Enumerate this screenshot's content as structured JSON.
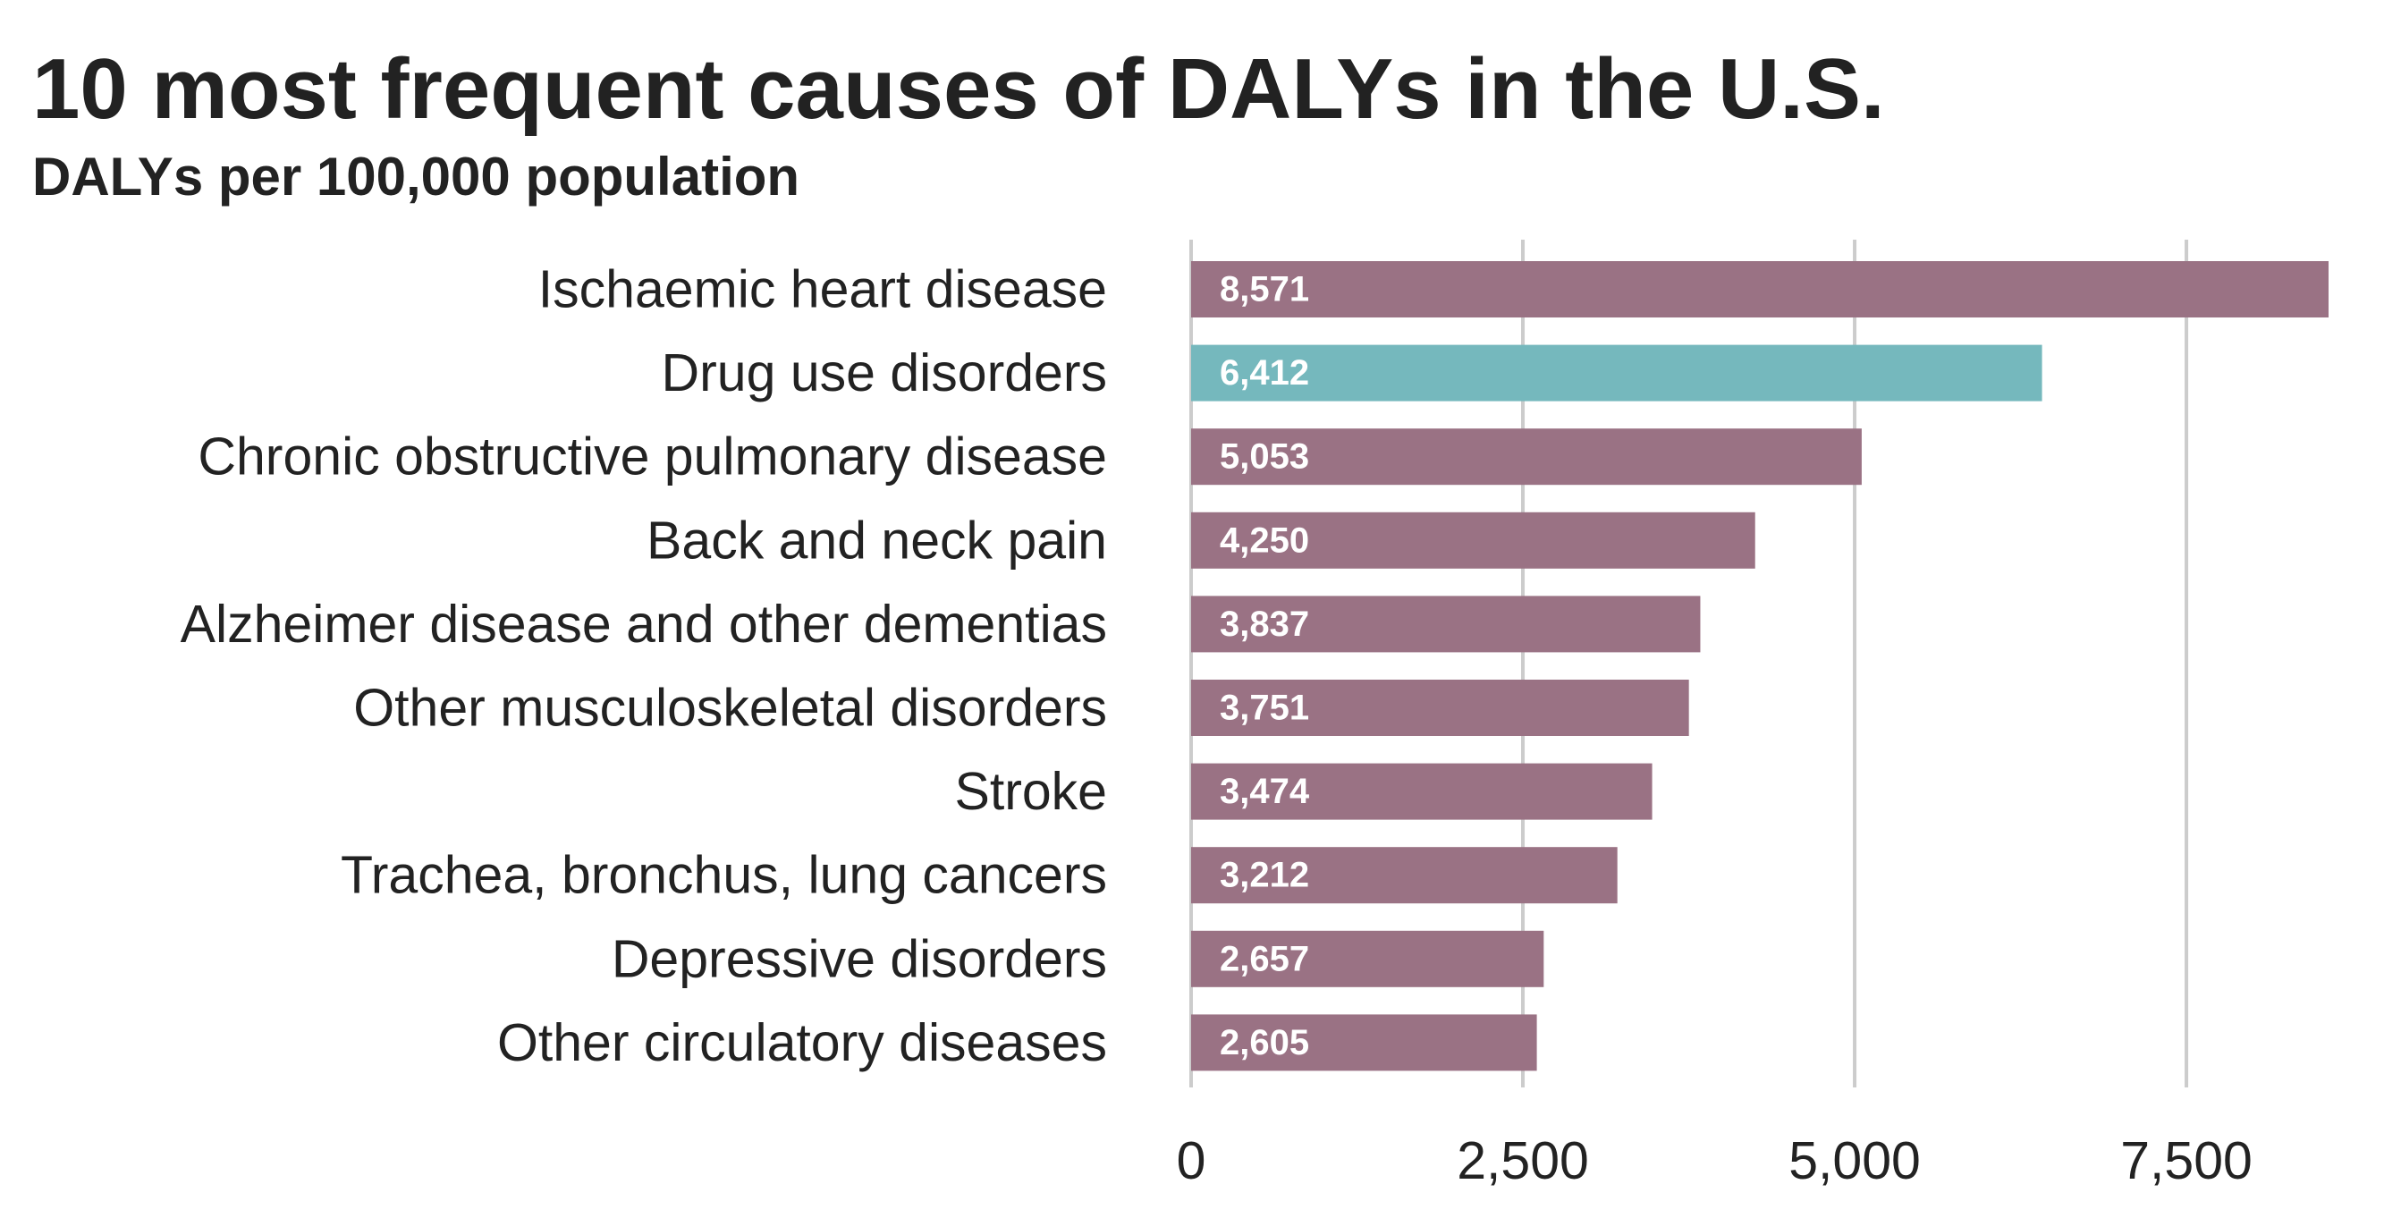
{
  "chart_data": {
    "type": "bar",
    "orientation": "horizontal",
    "title": "10 most frequent causes of DALYs in the U.S.",
    "subtitle": "DALYs per 100,000 population",
    "categories": [
      "Ischaemic heart disease",
      "Drug use disorders",
      "Chronic obstructive pulmonary disease",
      "Back and neck pain",
      "Alzheimer disease and other dementias",
      "Other musculoskeletal disorders",
      "Stroke",
      "Trachea, bronchus, lung cancers",
      "Depressive disorders",
      "Other circulatory diseases"
    ],
    "values": [
      8571,
      6412,
      5053,
      4250,
      3837,
      3751,
      3474,
      3212,
      2657,
      2605
    ],
    "value_labels": [
      "8,571",
      "6,412",
      "5,053",
      "4,250",
      "3,837",
      "3,751",
      "3,474",
      "3,212",
      "2,657",
      "2,605"
    ],
    "highlight_index": 1,
    "xlim": [
      0,
      8571
    ],
    "xticks": [
      0,
      2500,
      5000,
      7500
    ],
    "xtick_labels": [
      "0",
      "2,500",
      "5,000",
      "7,500"
    ],
    "grid": "vertical",
    "colors": {
      "bar": "#9a7284",
      "highlight": "#75b8bd",
      "grid": "#cccccc",
      "text": "#222222"
    }
  }
}
